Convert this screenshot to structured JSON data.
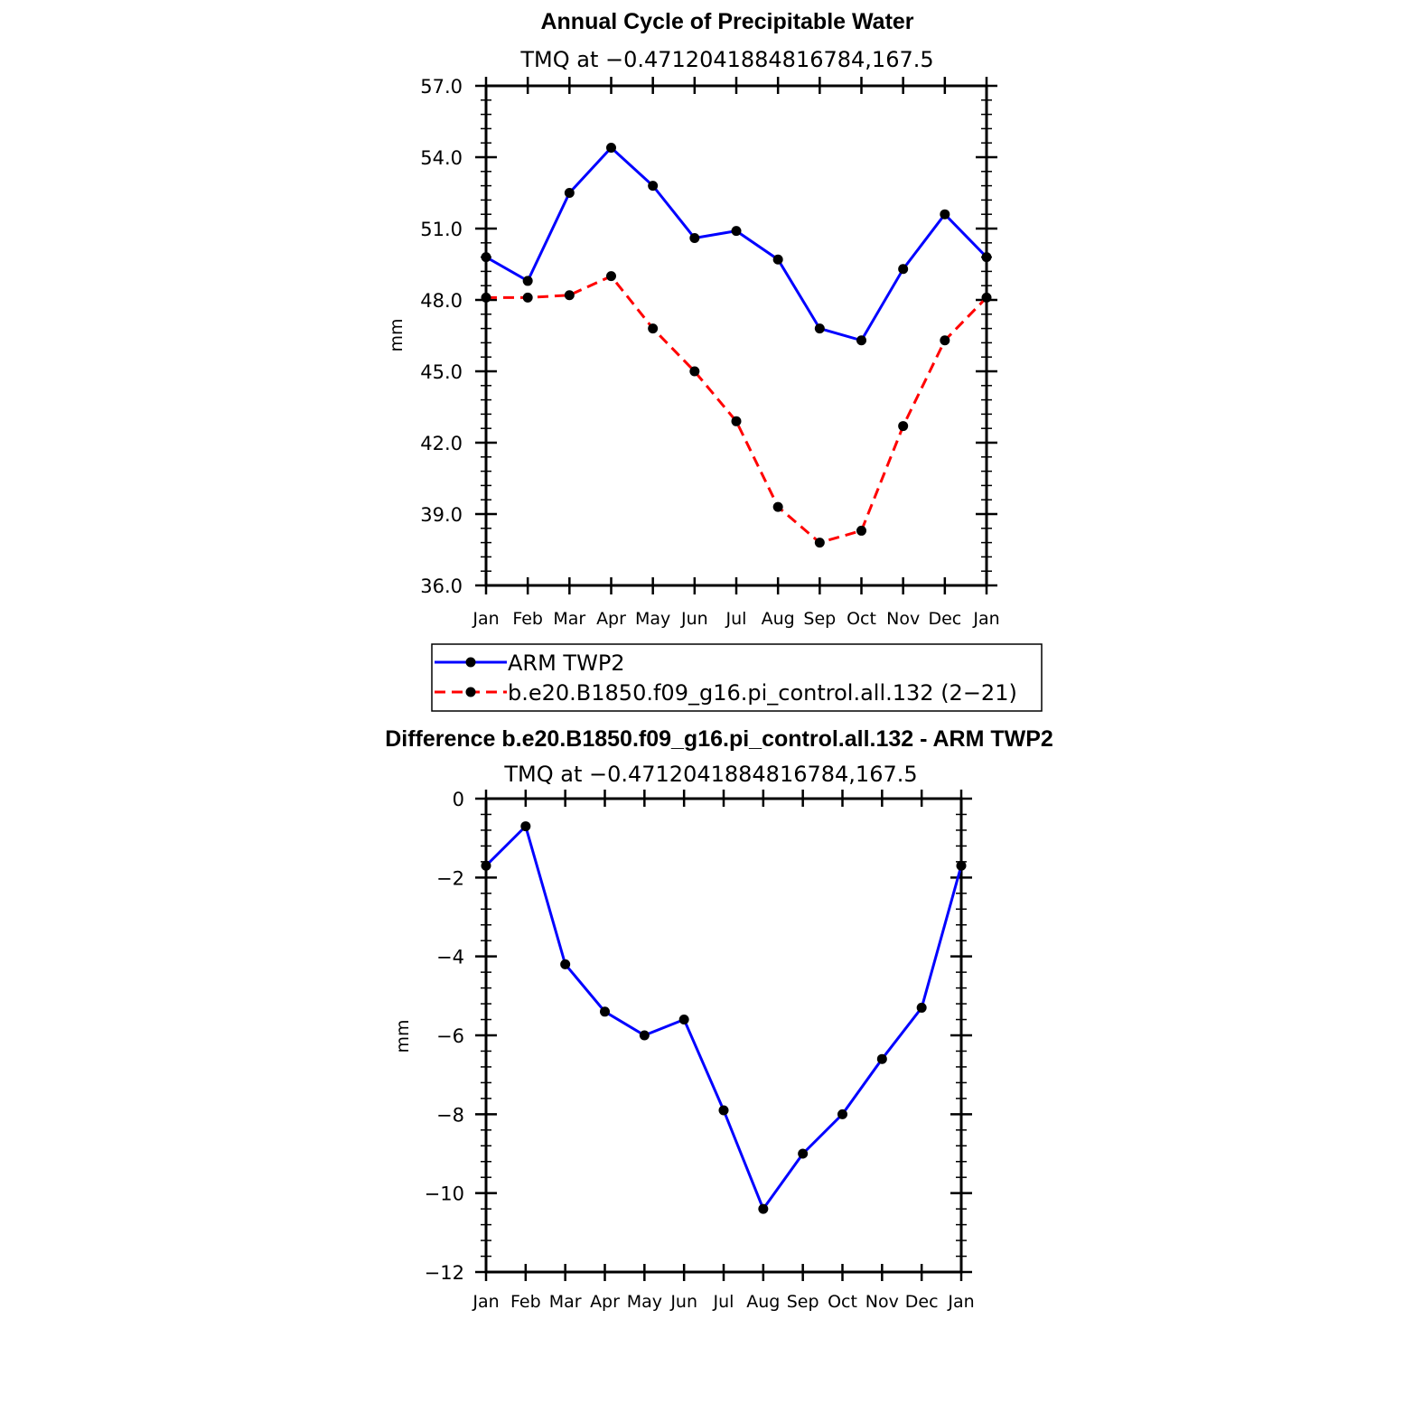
{
  "colors": {
    "obs": "#0000ff",
    "model": "#ff0000",
    "marker": "#000000"
  },
  "chart_data": [
    {
      "type": "line",
      "title": "Annual Cycle of Precipitable Water",
      "subtitle": "TMQ at −0.4712041884816784,167.5",
      "xlabel": "",
      "ylabel": "mm",
      "categories": [
        "Jan",
        "Feb",
        "Mar",
        "Apr",
        "May",
        "Jun",
        "Jul",
        "Aug",
        "Sep",
        "Oct",
        "Nov",
        "Dec",
        "Jan"
      ],
      "ylim": [
        36.0,
        57.0
      ],
      "yticks": [
        36.0,
        39.0,
        42.0,
        45.0,
        48.0,
        51.0,
        54.0,
        57.0
      ],
      "ytick_labels": [
        "36.0",
        "39.0",
        "42.0",
        "45.0",
        "48.0",
        "51.0",
        "54.0",
        "57.0"
      ],
      "series": [
        {
          "name": "ARM TWP2",
          "style": "solid",
          "color": "#0000ff",
          "values": [
            49.8,
            48.8,
            52.5,
            54.4,
            52.8,
            50.6,
            50.9,
            49.7,
            46.8,
            46.3,
            49.3,
            51.6,
            49.8
          ]
        },
        {
          "name": "b.e20.B1850.f09_g16.pi_control.all.132 (2−21)",
          "style": "dashed",
          "color": "#ff0000",
          "values": [
            48.1,
            48.1,
            48.2,
            49.0,
            46.8,
            45.0,
            42.9,
            39.3,
            37.8,
            38.3,
            42.7,
            46.3,
            48.1
          ]
        }
      ],
      "legend": "bottom"
    },
    {
      "type": "line",
      "title": "Difference b.e20.B1850.f09_g16.pi_control.all.132 - ARM TWP2",
      "subtitle": "TMQ at −0.4712041884816784,167.5",
      "xlabel": "",
      "ylabel": "mm",
      "categories": [
        "Jan",
        "Feb",
        "Mar",
        "Apr",
        "May",
        "Jun",
        "Jul",
        "Aug",
        "Sep",
        "Oct",
        "Nov",
        "Dec",
        "Jan"
      ],
      "ylim": [
        -12,
        0
      ],
      "yticks": [
        -12,
        -10,
        -8,
        -6,
        -4,
        -2,
        0
      ],
      "ytick_labels": [
        "−12",
        "−10",
        "−8",
        "−6",
        "−4",
        "−2",
        "0"
      ],
      "series": [
        {
          "name": "Difference",
          "style": "solid",
          "color": "#0000ff",
          "values": [
            -1.7,
            -0.7,
            -4.2,
            -5.4,
            -6.0,
            -5.6,
            -7.9,
            -10.4,
            -9.0,
            -8.0,
            -6.6,
            -5.3,
            -1.7
          ]
        }
      ]
    }
  ]
}
